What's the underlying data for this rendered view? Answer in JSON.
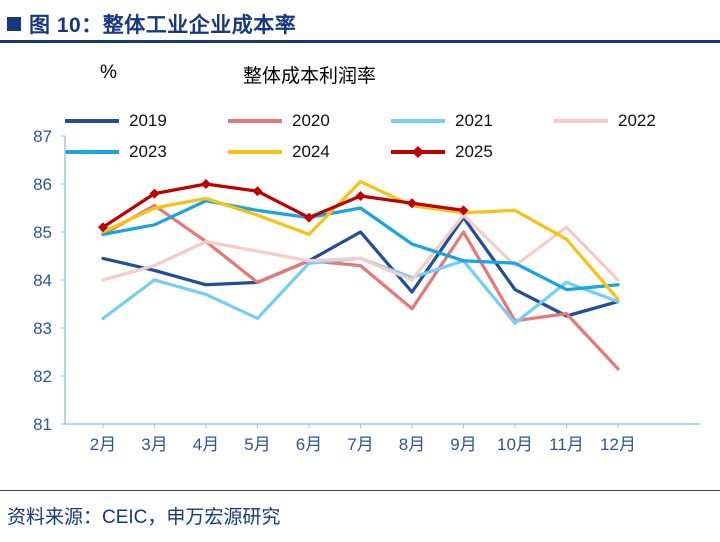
{
  "header": {
    "title": "图 10：整体工业企业成本率"
  },
  "footer": {
    "source": "资料来源：CEIC，申万宏源研究"
  },
  "style": {
    "brand_color": "#15387F",
    "tick_label_color": "#2F5597",
    "axis_color": "#9DC3E6",
    "background": "#FFFFFF"
  },
  "chart_data": {
    "type": "line",
    "title": "整体成本利润率",
    "ylabel": "%",
    "xlabel": "",
    "categories": [
      "2月",
      "3月",
      "4月",
      "5月",
      "6月",
      "7月",
      "8月",
      "9月",
      "10月",
      "11月",
      "12月"
    ],
    "ylim": [
      81,
      87
    ],
    "yticks": [
      81,
      82,
      83,
      84,
      85,
      86,
      87
    ],
    "grid": false,
    "legend_position": "top-left",
    "series": [
      {
        "name": "2019",
        "color": "#1F4E9C",
        "marker": "none",
        "values": [
          84.45,
          84.2,
          83.9,
          83.95,
          84.4,
          85.0,
          83.75,
          85.3,
          83.8,
          83.25,
          83.55
        ]
      },
      {
        "name": "2020",
        "color": "#E97777",
        "marker": "none",
        "values": [
          84.95,
          85.55,
          84.8,
          83.95,
          84.4,
          84.3,
          83.4,
          85.0,
          83.15,
          83.3,
          82.15
        ]
      },
      {
        "name": "2021",
        "color": "#74CEF5",
        "marker": "none",
        "values": [
          83.2,
          84.0,
          83.7,
          83.2,
          84.35,
          84.45,
          84.05,
          84.4,
          83.1,
          83.95,
          83.55
        ]
      },
      {
        "name": "2022",
        "color": "#F7CBC7",
        "marker": "none",
        "values": [
          84.0,
          84.3,
          84.8,
          84.6,
          84.4,
          84.45,
          84.0,
          85.35,
          84.3,
          85.1,
          84.0
        ]
      },
      {
        "name": "2023",
        "color": "#18A5E4",
        "marker": "none",
        "values": [
          84.95,
          85.15,
          85.65,
          85.45,
          85.3,
          85.5,
          84.75,
          84.4,
          84.35,
          83.8,
          83.9
        ]
      },
      {
        "name": "2024",
        "color": "#F6C315",
        "marker": "none",
        "values": [
          85.0,
          85.5,
          85.7,
          85.35,
          84.95,
          86.05,
          85.55,
          85.4,
          85.45,
          84.85,
          83.6
        ]
      },
      {
        "name": "2025",
        "color": "#C00000",
        "marker": "diamond",
        "values": [
          85.1,
          85.8,
          86.0,
          85.85,
          85.3,
          85.75,
          85.6,
          85.45,
          null,
          null,
          null
        ]
      }
    ]
  }
}
